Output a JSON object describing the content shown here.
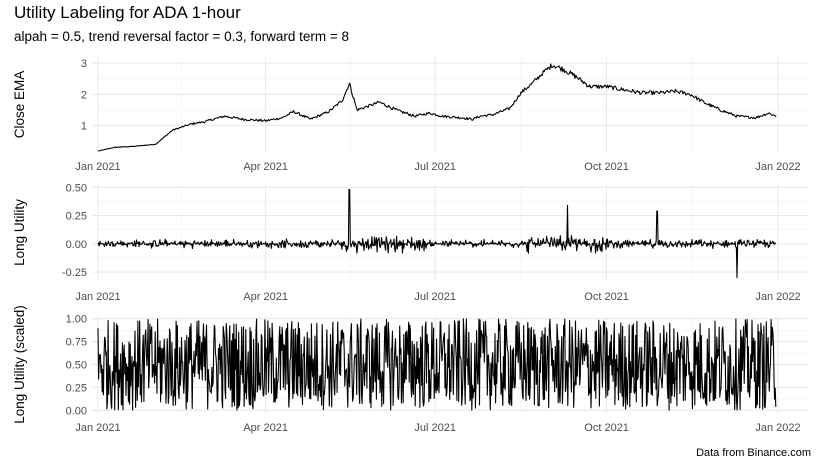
{
  "title": "Utility Labeling for ADA 1-hour",
  "subtitle": "alpah = 0.5, trend reversal factor = 0.3, forward term = 8",
  "caption": "Data from Binance.com",
  "chart_data": [
    {
      "type": "line",
      "ylabel": "Close EMA",
      "x_ticks": [
        "Jan 2021",
        "Apr 2021",
        "Jul 2021",
        "Oct 2021",
        "Jan 2022"
      ],
      "xlim": [
        "2021-01-01",
        "2021-12-31"
      ],
      "y_ticks": [
        "1",
        "2",
        "3"
      ],
      "ylim": [
        0.15,
        3.2
      ],
      "grid": true,
      "series": [
        {
          "x": [
            "2021-01-01",
            "2021-01-10",
            "2021-01-20",
            "2021-02-01",
            "2021-02-10",
            "2021-02-20",
            "2021-02-27",
            "2021-03-10",
            "2021-03-20",
            "2021-04-01",
            "2021-04-10",
            "2021-04-16",
            "2021-04-25",
            "2021-05-05",
            "2021-05-12",
            "2021-05-16",
            "2021-05-20",
            "2021-05-25",
            "2021-06-01",
            "2021-06-10",
            "2021-06-20",
            "2021-06-28",
            "2021-07-05",
            "2021-07-15",
            "2021-07-21",
            "2021-07-25",
            "2021-08-01",
            "2021-08-10",
            "2021-08-16",
            "2021-08-22",
            "2021-08-28",
            "2021-09-02",
            "2021-09-08",
            "2021-09-15",
            "2021-09-22",
            "2021-10-01",
            "2021-10-10",
            "2021-10-20",
            "2021-10-30",
            "2021-11-07",
            "2021-11-15",
            "2021-11-22",
            "2021-12-01",
            "2021-12-10",
            "2021-12-20",
            "2021-12-27",
            "2021-12-31"
          ],
          "values": [
            0.18,
            0.3,
            0.33,
            0.4,
            0.85,
            1.05,
            1.12,
            1.3,
            1.2,
            1.15,
            1.25,
            1.45,
            1.2,
            1.45,
            1.8,
            2.35,
            1.5,
            1.6,
            1.75,
            1.5,
            1.3,
            1.4,
            1.3,
            1.25,
            1.2,
            1.3,
            1.35,
            1.55,
            2.05,
            2.35,
            2.7,
            2.95,
            2.8,
            2.55,
            2.25,
            2.25,
            2.15,
            2.05,
            2.05,
            2.1,
            2.0,
            1.75,
            1.5,
            1.3,
            1.25,
            1.4,
            1.3
          ]
        }
      ]
    },
    {
      "type": "line",
      "ylabel": "Long Utility",
      "x_ticks": [
        "Jan 2021",
        "Apr 2021",
        "Jul 2021",
        "Oct 2021",
        "Jan 2022"
      ],
      "xlim": [
        "2021-01-01",
        "2021-12-31"
      ],
      "y_ticks": [
        "0.50",
        "0.25",
        "0.00",
        "-0.25"
      ],
      "ylim": [
        -0.32,
        0.52
      ],
      "grid": true,
      "series": [
        {
          "x": [
            "2021-05-16",
            "2021-09-10",
            "2021-10-28",
            "2021-12-10"
          ],
          "values": [
            0.48,
            0.34,
            0.29,
            -0.3
          ]
        }
      ]
    },
    {
      "type": "line",
      "ylabel": "Long Utility (scaled)",
      "x_ticks": [
        "Jan 2021",
        "Apr 2021",
        "Jul 2021",
        "Oct 2021",
        "Jan 2022"
      ],
      "xlim": [
        "2021-01-01",
        "2021-12-31"
      ],
      "y_ticks": [
        "1.00",
        "0.75",
        "0.50",
        "0.25",
        "0.00"
      ],
      "ylim": [
        -0.03,
        1.03
      ],
      "grid": true,
      "series": [
        {
          "x": [],
          "values": []
        }
      ]
    }
  ]
}
